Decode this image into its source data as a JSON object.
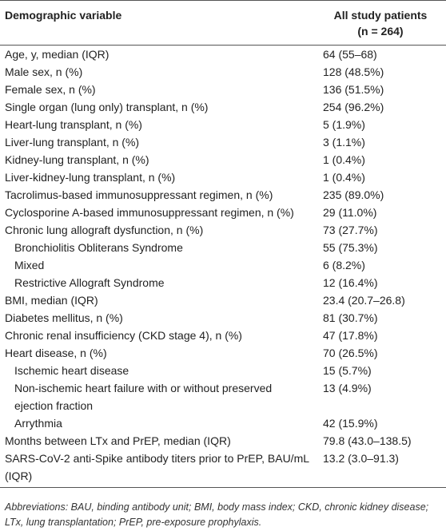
{
  "table": {
    "header": [
      "Demographic variable",
      "All study patients",
      "(n = 264)"
    ],
    "rows": [
      {
        "label": "Age, y, median (IQR)",
        "value": "64 (55–68)"
      },
      {
        "label": "Male sex, n (%)",
        "value": "128 (48.5%)"
      },
      {
        "label": "Female sex, n (%)",
        "value": "136 (51.5%)"
      },
      {
        "label": "Single organ (lung only) transplant, n (%)",
        "value": "254 (96.2%)"
      },
      {
        "label": "Heart-lung transplant, n (%)",
        "value": "5 (1.9%)"
      },
      {
        "label": "Liver-lung transplant, n (%)",
        "value": "3 (1.1%)"
      },
      {
        "label": "Kidney-lung transplant, n (%)",
        "value": "1 (0.4%)"
      },
      {
        "label": "Liver-kidney-lung transplant, n (%)",
        "value": "1 (0.4%)"
      },
      {
        "label": "Tacrolimus-based immunosuppressant regimen, n (%)",
        "value": "235 (89.0%)"
      },
      {
        "label": "Cyclosporine A-based immunosuppressant regimen, n (%)",
        "value": "29 (11.0%)"
      },
      {
        "label": "Chronic lung allograft dysfunction, n (%)",
        "value": "73 (27.7%)"
      },
      {
        "label": "Bronchiolitis Obliterans Syndrome",
        "value": "55 (75.3%)",
        "indent": true
      },
      {
        "label": "Mixed",
        "value": "6 (8.2%)",
        "indent": true
      },
      {
        "label": "Restrictive Allograft Syndrome",
        "value": "12 (16.4%)",
        "indent": true
      },
      {
        "label": "BMI, median (IQR)",
        "value": "23.4 (20.7–26.8)"
      },
      {
        "label": "Diabetes mellitus, n (%)",
        "value": "81 (30.7%)"
      },
      {
        "label": "Chronic renal insufficiency (CKD stage 4), n (%)",
        "value": "47 (17.8%)"
      },
      {
        "label": "Heart disease, n (%)",
        "value": "70 (26.5%)"
      },
      {
        "label": "Ischemic heart disease",
        "value": "15 (5.7%)",
        "indent": true
      },
      {
        "label": "Non-ischemic heart failure with or without preserved ejection fraction",
        "value": "13 (4.9%)",
        "indent": true
      },
      {
        "label": "Arrythmia",
        "value": "42 (15.9%)",
        "indent": true
      },
      {
        "label": "Months between LTx and PrEP, median (IQR)",
        "value": "79.8 (43.0–138.5)"
      },
      {
        "label": "SARS-CoV-2 anti-Spike antibody titers prior to PrEP, BAU/mL (IQR)",
        "value": "13.2 (3.0–91.3)"
      }
    ]
  },
  "footnote": "Abbreviations: BAU, binding antibody unit; BMI, body mass index; CKD, chronic kidney disease; LTx, lung transplantation; PrEP, pre-exposure prophylaxis."
}
